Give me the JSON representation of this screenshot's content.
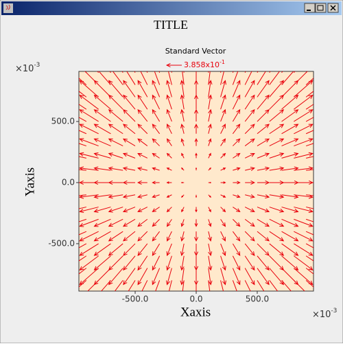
{
  "window": {
    "title_bar_buttons": true
  },
  "chart_data": {
    "type": "quiver",
    "title": "TITLE",
    "x_label": "Xaxis",
    "y_label": "Yaxis",
    "x_multiplier": {
      "base": "×10",
      "exponent": "-3"
    },
    "y_multiplier": {
      "base": "×10",
      "exponent": "-3"
    },
    "reference_vector": {
      "label": "Standard Vector",
      "value": 0.3858,
      "value_label": "3.858x10",
      "value_label_exponent": "-1"
    },
    "color": "#e8000b",
    "background": "#ffe9cc",
    "xlim": [
      -961,
      961
    ],
    "ylim": [
      -888,
      910
    ],
    "xticks": [
      {
        "value": -500,
        "label": "-500.0"
      },
      {
        "value": 0,
        "label": "0.0"
      },
      {
        "value": 500,
        "label": "500.0"
      }
    ],
    "yticks": [
      {
        "value": -500,
        "label": "-500.0"
      },
      {
        "value": 0,
        "label": "0.0"
      },
      {
        "value": 500,
        "label": "500.0"
      }
    ],
    "x": [
      -900,
      -800,
      -700,
      -600,
      -500,
      -400,
      -300,
      -200,
      -100,
      0,
      100,
      200,
      300,
      400,
      500,
      600,
      700,
      800,
      900
    ],
    "y": [
      -900,
      -800,
      -700,
      -600,
      -500,
      -400,
      -300,
      -200,
      -100,
      0,
      100,
      200,
      300,
      400,
      500,
      600,
      700,
      800,
      900
    ],
    "u": [
      [
        -0.54,
        -0.48,
        -0.42,
        -0.36,
        -0.3,
        -0.24,
        -0.18,
        -0.12,
        -0.06,
        0,
        0.06,
        0.12,
        0.18,
        0.24,
        0.3,
        0.36,
        0.42,
        0.48,
        0.54
      ],
      [
        -0.54,
        -0.48,
        -0.42,
        -0.36,
        -0.3,
        -0.24,
        -0.18,
        -0.12,
        -0.06,
        0,
        0.06,
        0.12,
        0.18,
        0.24,
        0.3,
        0.36,
        0.42,
        0.48,
        0.54
      ],
      [
        -0.54,
        -0.48,
        -0.42,
        -0.36,
        -0.3,
        -0.24,
        -0.18,
        -0.12,
        -0.06,
        0,
        0.06,
        0.12,
        0.18,
        0.24,
        0.3,
        0.36,
        0.42,
        0.48,
        0.54
      ],
      [
        -0.54,
        -0.48,
        -0.42,
        -0.36,
        -0.3,
        -0.24,
        -0.18,
        -0.12,
        -0.06,
        0,
        0.06,
        0.12,
        0.18,
        0.24,
        0.3,
        0.36,
        0.42,
        0.48,
        0.54
      ],
      [
        -0.54,
        -0.48,
        -0.42,
        -0.36,
        -0.3,
        -0.24,
        -0.18,
        -0.12,
        -0.06,
        0,
        0.06,
        0.12,
        0.18,
        0.24,
        0.3,
        0.36,
        0.42,
        0.48,
        0.54
      ],
      [
        -0.54,
        -0.48,
        -0.42,
        -0.36,
        -0.3,
        -0.24,
        -0.18,
        -0.12,
        -0.06,
        0,
        0.06,
        0.12,
        0.18,
        0.24,
        0.3,
        0.36,
        0.42,
        0.48,
        0.54
      ],
      [
        -0.54,
        -0.48,
        -0.42,
        -0.36,
        -0.3,
        -0.24,
        -0.18,
        -0.12,
        -0.06,
        0,
        0.06,
        0.12,
        0.18,
        0.24,
        0.3,
        0.36,
        0.42,
        0.48,
        0.54
      ],
      [
        -0.54,
        -0.48,
        -0.42,
        -0.36,
        -0.3,
        -0.24,
        -0.18,
        -0.12,
        -0.06,
        0,
        0.06,
        0.12,
        0.18,
        0.24,
        0.3,
        0.36,
        0.42,
        0.48,
        0.54
      ],
      [
        -0.54,
        -0.48,
        -0.42,
        -0.36,
        -0.3,
        -0.24,
        -0.18,
        -0.12,
        -0.06,
        0,
        0.06,
        0.12,
        0.18,
        0.24,
        0.3,
        0.36,
        0.42,
        0.48,
        0.54
      ],
      [
        -0.54,
        -0.48,
        -0.42,
        -0.36,
        -0.3,
        -0.24,
        -0.18,
        -0.12,
        -0.06,
        0,
        0.06,
        0.12,
        0.18,
        0.24,
        0.3,
        0.36,
        0.42,
        0.48,
        0.54
      ],
      [
        -0.54,
        -0.48,
        -0.42,
        -0.36,
        -0.3,
        -0.24,
        -0.18,
        -0.12,
        -0.06,
        0,
        0.06,
        0.12,
        0.18,
        0.24,
        0.3,
        0.36,
        0.42,
        0.48,
        0.54
      ],
      [
        -0.54,
        -0.48,
        -0.42,
        -0.36,
        -0.3,
        -0.24,
        -0.18,
        -0.12,
        -0.06,
        0,
        0.06,
        0.12,
        0.18,
        0.24,
        0.3,
        0.36,
        0.42,
        0.48,
        0.54
      ],
      [
        -0.54,
        -0.48,
        -0.42,
        -0.36,
        -0.3,
        -0.24,
        -0.18,
        -0.12,
        -0.06,
        0,
        0.06,
        0.12,
        0.18,
        0.24,
        0.3,
        0.36,
        0.42,
        0.48,
        0.54
      ],
      [
        -0.54,
        -0.48,
        -0.42,
        -0.36,
        -0.3,
        -0.24,
        -0.18,
        -0.12,
        -0.06,
        0,
        0.06,
        0.12,
        0.18,
        0.24,
        0.3,
        0.36,
        0.42,
        0.48,
        0.54
      ],
      [
        -0.54,
        -0.48,
        -0.42,
        -0.36,
        -0.3,
        -0.24,
        -0.18,
        -0.12,
        -0.06,
        0,
        0.06,
        0.12,
        0.18,
        0.24,
        0.3,
        0.36,
        0.42,
        0.48,
        0.54
      ],
      [
        -0.54,
        -0.48,
        -0.42,
        -0.36,
        -0.3,
        -0.24,
        -0.18,
        -0.12,
        -0.06,
        0,
        0.06,
        0.12,
        0.18,
        0.24,
        0.3,
        0.36,
        0.42,
        0.48,
        0.54
      ],
      [
        -0.54,
        -0.48,
        -0.42,
        -0.36,
        -0.3,
        -0.24,
        -0.18,
        -0.12,
        -0.06,
        0,
        0.06,
        0.12,
        0.18,
        0.24,
        0.3,
        0.36,
        0.42,
        0.48,
        0.54
      ],
      [
        -0.54,
        -0.48,
        -0.42,
        -0.36,
        -0.3,
        -0.24,
        -0.18,
        -0.12,
        -0.06,
        0,
        0.06,
        0.12,
        0.18,
        0.24,
        0.3,
        0.36,
        0.42,
        0.48,
        0.54
      ],
      [
        -0.54,
        -0.48,
        -0.42,
        -0.36,
        -0.3,
        -0.24,
        -0.18,
        -0.12,
        -0.06,
        0,
        0.06,
        0.12,
        0.18,
        0.24,
        0.3,
        0.36,
        0.42,
        0.48,
        0.54
      ]
    ],
    "v": [
      [
        -0.54,
        -0.54,
        -0.54,
        -0.54,
        -0.54,
        -0.54,
        -0.54,
        -0.54,
        -0.54,
        -0.54,
        -0.54,
        -0.54,
        -0.54,
        -0.54,
        -0.54,
        -0.54,
        -0.54,
        -0.54,
        -0.54
      ],
      [
        -0.48,
        -0.48,
        -0.48,
        -0.48,
        -0.48,
        -0.48,
        -0.48,
        -0.48,
        -0.48,
        -0.48,
        -0.48,
        -0.48,
        -0.48,
        -0.48,
        -0.48,
        -0.48,
        -0.48,
        -0.48,
        -0.48
      ],
      [
        -0.42,
        -0.42,
        -0.42,
        -0.42,
        -0.42,
        -0.42,
        -0.42,
        -0.42,
        -0.42,
        -0.42,
        -0.42,
        -0.42,
        -0.42,
        -0.42,
        -0.42,
        -0.42,
        -0.42,
        -0.42,
        -0.42
      ],
      [
        -0.36,
        -0.36,
        -0.36,
        -0.36,
        -0.36,
        -0.36,
        -0.36,
        -0.36,
        -0.36,
        -0.36,
        -0.36,
        -0.36,
        -0.36,
        -0.36,
        -0.36,
        -0.36,
        -0.36,
        -0.36,
        -0.36
      ],
      [
        -0.3,
        -0.3,
        -0.3,
        -0.3,
        -0.3,
        -0.3,
        -0.3,
        -0.3,
        -0.3,
        -0.3,
        -0.3,
        -0.3,
        -0.3,
        -0.3,
        -0.3,
        -0.3,
        -0.3,
        -0.3,
        -0.3
      ],
      [
        -0.24,
        -0.24,
        -0.24,
        -0.24,
        -0.24,
        -0.24,
        -0.24,
        -0.24,
        -0.24,
        -0.24,
        -0.24,
        -0.24,
        -0.24,
        -0.24,
        -0.24,
        -0.24,
        -0.24,
        -0.24,
        -0.24
      ],
      [
        -0.18,
        -0.18,
        -0.18,
        -0.18,
        -0.18,
        -0.18,
        -0.18,
        -0.18,
        -0.18,
        -0.18,
        -0.18,
        -0.18,
        -0.18,
        -0.18,
        -0.18,
        -0.18,
        -0.18,
        -0.18,
        -0.18
      ],
      [
        -0.12,
        -0.12,
        -0.12,
        -0.12,
        -0.12,
        -0.12,
        -0.12,
        -0.12,
        -0.12,
        -0.12,
        -0.12,
        -0.12,
        -0.12,
        -0.12,
        -0.12,
        -0.12,
        -0.12,
        -0.12,
        -0.12
      ],
      [
        -0.06,
        -0.06,
        -0.06,
        -0.06,
        -0.06,
        -0.06,
        -0.06,
        -0.06,
        -0.06,
        -0.06,
        -0.06,
        -0.06,
        -0.06,
        -0.06,
        -0.06,
        -0.06,
        -0.06,
        -0.06,
        -0.06
      ],
      [
        0,
        0,
        0,
        0,
        0,
        0,
        0,
        0,
        0,
        0,
        0,
        0,
        0,
        0,
        0,
        0,
        0,
        0,
        0
      ],
      [
        0.06,
        0.06,
        0.06,
        0.06,
        0.06,
        0.06,
        0.06,
        0.06,
        0.06,
        0.06,
        0.06,
        0.06,
        0.06,
        0.06,
        0.06,
        0.06,
        0.06,
        0.06,
        0.06
      ],
      [
        0.12,
        0.12,
        0.12,
        0.12,
        0.12,
        0.12,
        0.12,
        0.12,
        0.12,
        0.12,
        0.12,
        0.12,
        0.12,
        0.12,
        0.12,
        0.12,
        0.12,
        0.12,
        0.12
      ],
      [
        0.18,
        0.18,
        0.18,
        0.18,
        0.18,
        0.18,
        0.18,
        0.18,
        0.18,
        0.18,
        0.18,
        0.18,
        0.18,
        0.18,
        0.18,
        0.18,
        0.18,
        0.18,
        0.18
      ],
      [
        0.24,
        0.24,
        0.24,
        0.24,
        0.24,
        0.24,
        0.24,
        0.24,
        0.24,
        0.24,
        0.24,
        0.24,
        0.24,
        0.24,
        0.24,
        0.24,
        0.24,
        0.24,
        0.24
      ],
      [
        0.3,
        0.3,
        0.3,
        0.3,
        0.3,
        0.3,
        0.3,
        0.3,
        0.3,
        0.3,
        0.3,
        0.3,
        0.3,
        0.3,
        0.3,
        0.3,
        0.3,
        0.3,
        0.3
      ],
      [
        0.36,
        0.36,
        0.36,
        0.36,
        0.36,
        0.36,
        0.36,
        0.36,
        0.36,
        0.36,
        0.36,
        0.36,
        0.36,
        0.36,
        0.36,
        0.36,
        0.36,
        0.36,
        0.36
      ],
      [
        0.42,
        0.42,
        0.42,
        0.42,
        0.42,
        0.42,
        0.42,
        0.42,
        0.42,
        0.42,
        0.42,
        0.42,
        0.42,
        0.42,
        0.42,
        0.42,
        0.42,
        0.42,
        0.42
      ],
      [
        0.48,
        0.48,
        0.48,
        0.48,
        0.48,
        0.48,
        0.48,
        0.48,
        0.48,
        0.48,
        0.48,
        0.48,
        0.48,
        0.48,
        0.48,
        0.48,
        0.48,
        0.48,
        0.48
      ],
      [
        0.54,
        0.54,
        0.54,
        0.54,
        0.54,
        0.54,
        0.54,
        0.54,
        0.54,
        0.54,
        0.54,
        0.54,
        0.54,
        0.54,
        0.54,
        0.54,
        0.54,
        0.54,
        0.54
      ]
    ]
  }
}
